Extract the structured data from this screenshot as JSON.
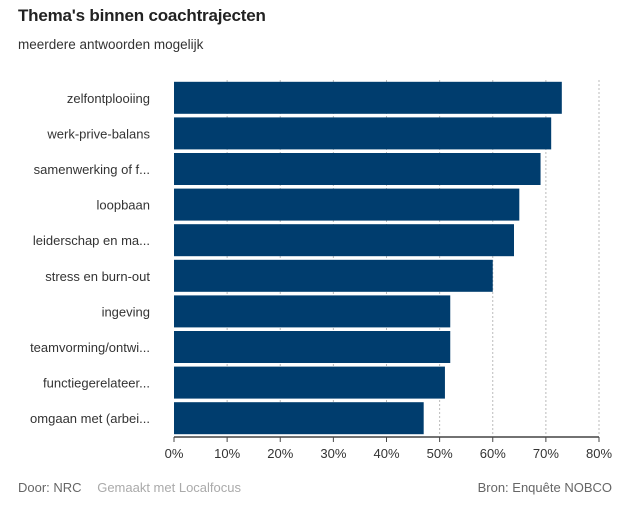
{
  "title": "Thema's binnen coachtrajecten",
  "subtitle": "meerdere antwoorden mogelijk",
  "footer": {
    "author": "Door: NRC",
    "made_with": "Gemaakt met Localfocus",
    "source": "Bron:  Enquête NOBCO"
  },
  "colors": {
    "bar": "#003d6e",
    "grid": "#bbbbbb",
    "axis": "#444444"
  },
  "chart_data": {
    "type": "bar",
    "orientation": "horizontal",
    "categories": [
      "zelfontplooiing",
      "werk-prive-balans",
      "samenwerking of f...",
      "loopbaan",
      "leiderschap en ma...",
      "stress en burn-out",
      "ingeving",
      "teamvorming/ontwi...",
      "functiegerelateer...",
      "omgaan met (arbei..."
    ],
    "values": [
      73,
      71,
      69,
      65,
      64,
      60,
      52,
      52,
      51,
      47
    ],
    "xlim": [
      0,
      80
    ],
    "xticks": [
      "0%",
      "10%",
      "20%",
      "30%",
      "40%",
      "50%",
      "60%",
      "70%",
      "80%"
    ],
    "grid": true,
    "unit": "%"
  }
}
